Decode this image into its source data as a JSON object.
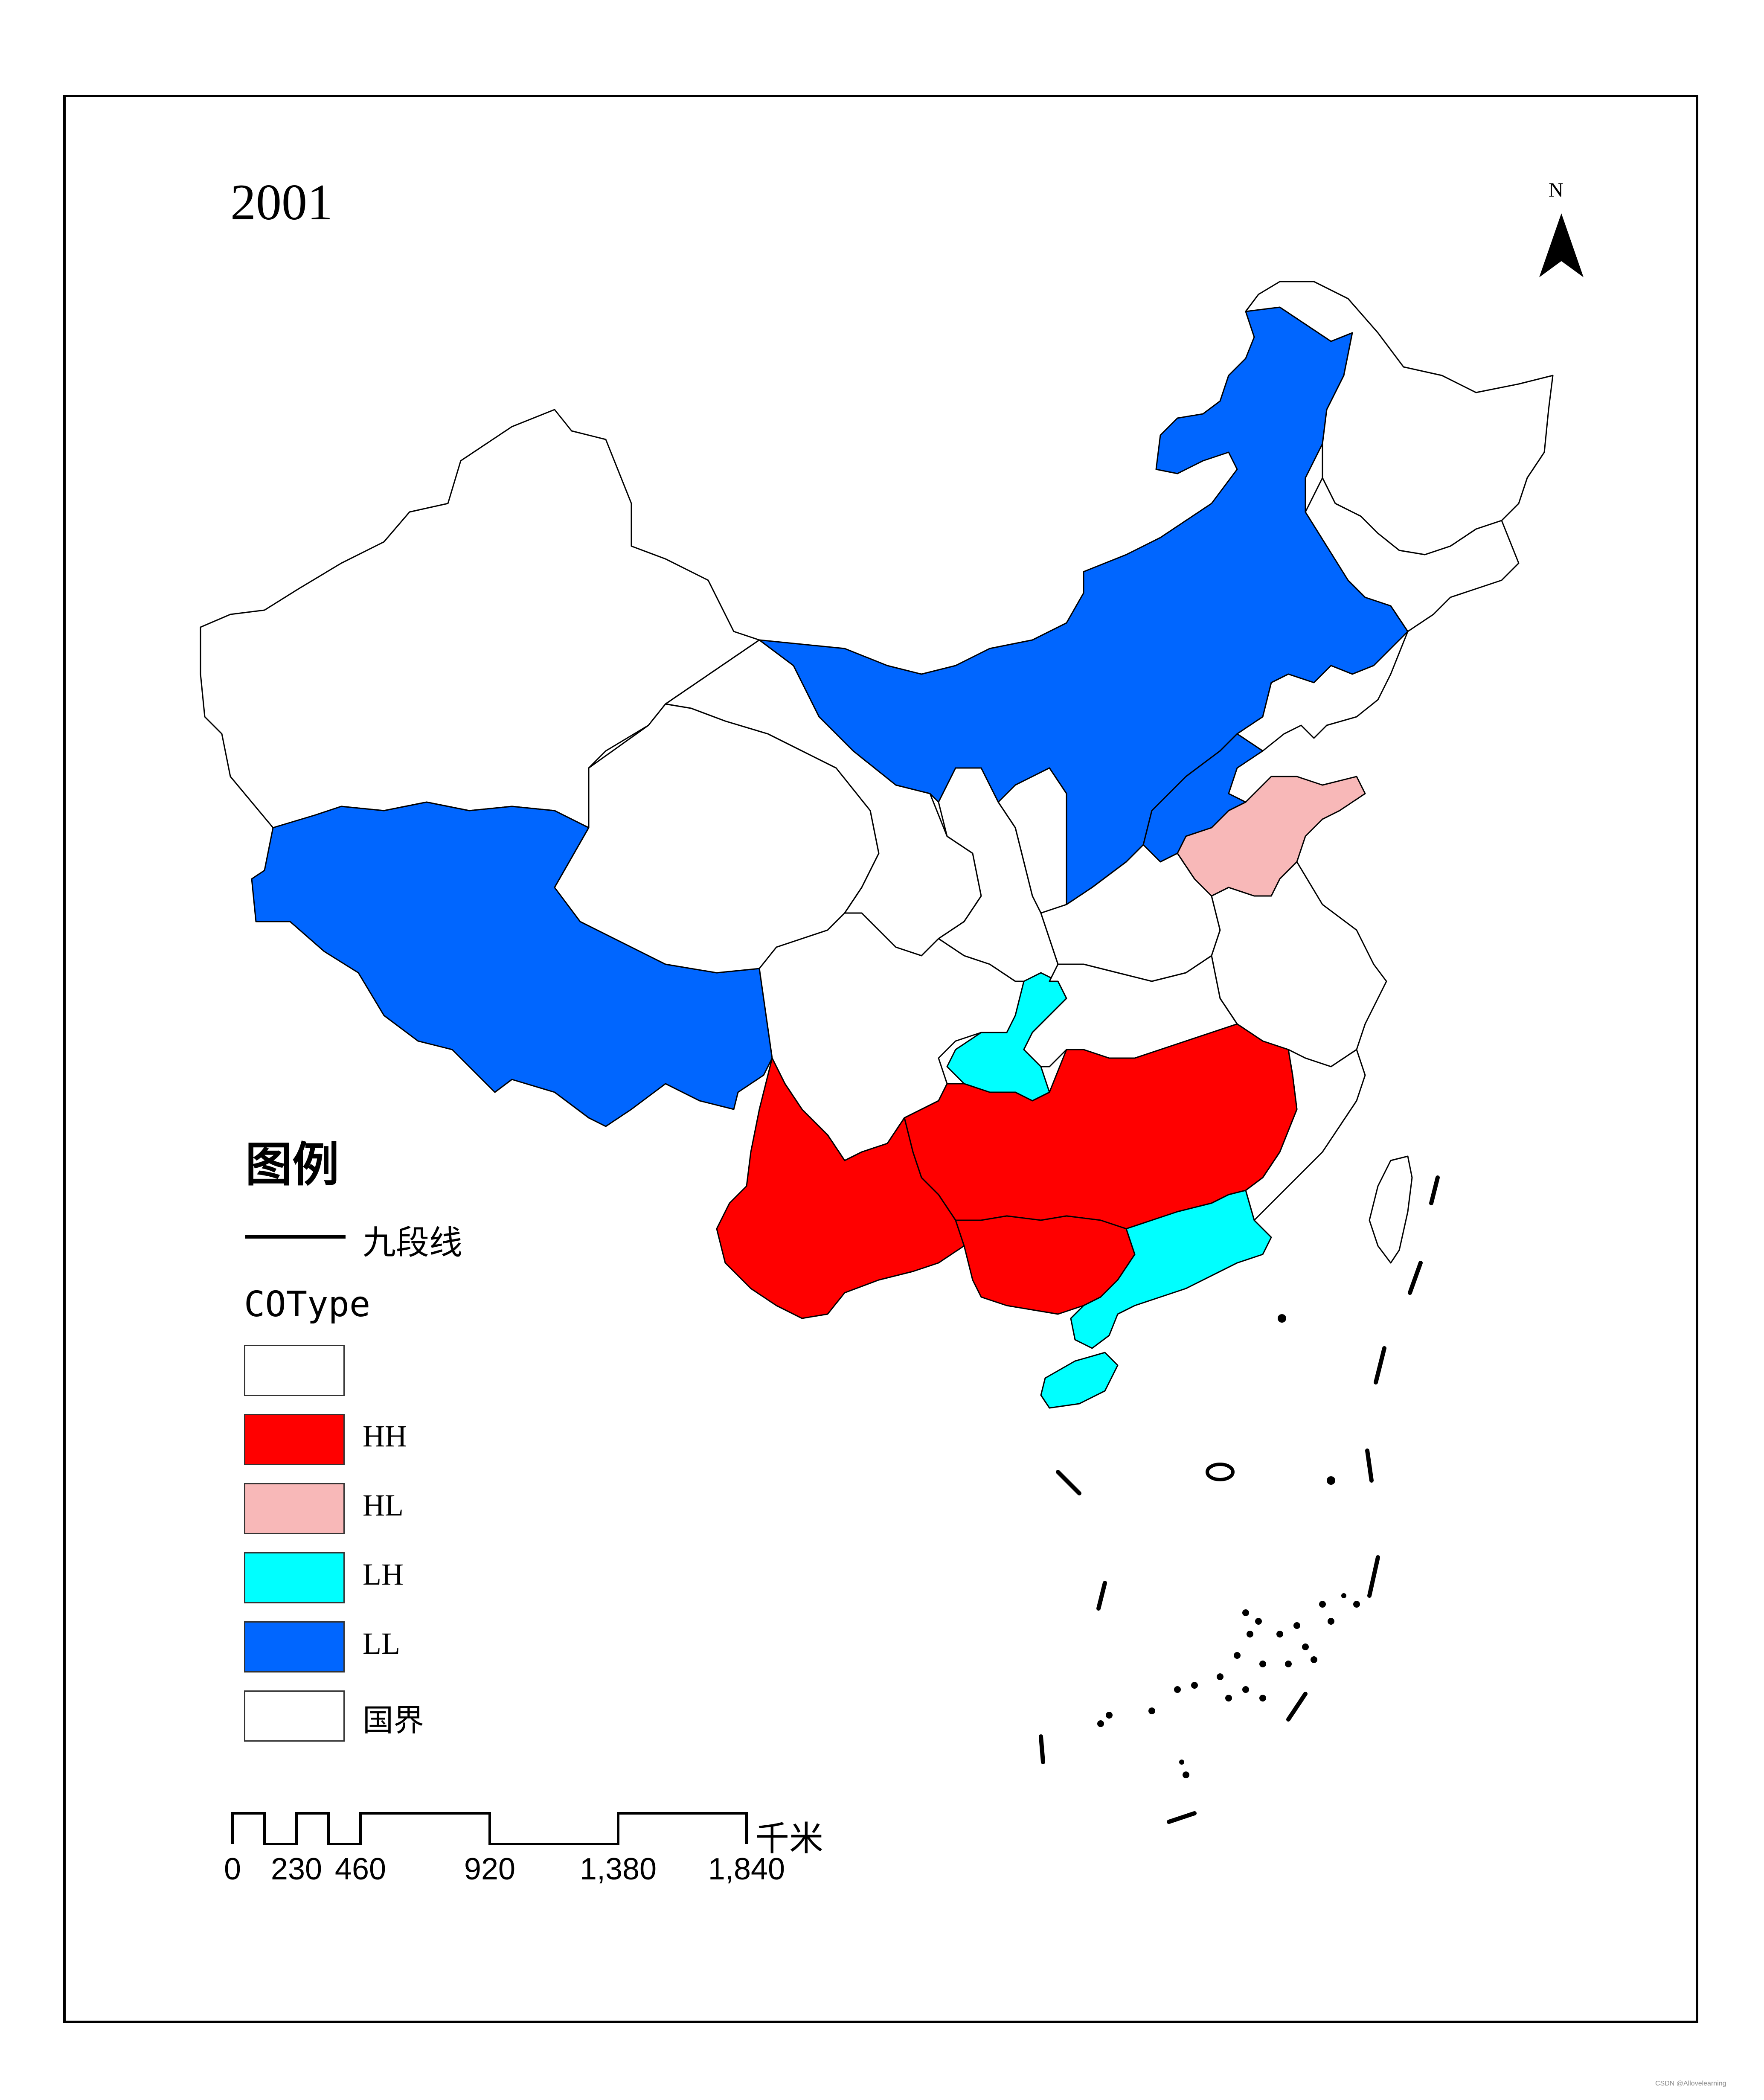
{
  "map": {
    "title": "2001",
    "north_label": "N",
    "legend": {
      "title": "图例",
      "nine_dash_label": "九段线",
      "field_name": "COType",
      "classes": [
        {
          "label": "",
          "color": "#ffffff"
        },
        {
          "label": "HH",
          "color": "#ff0000"
        },
        {
          "label": "HL",
          "color": "#f8b8b8"
        },
        {
          "label": "LH",
          "color": "#00ffff"
        },
        {
          "label": "LL",
          "color": "#0066ff"
        },
        {
          "label": "国界",
          "color": "#ffffff"
        }
      ]
    },
    "scale_bar": {
      "unit": "千米",
      "ticks": [
        "0",
        "230",
        "460",
        "920",
        "1,380",
        "1,840"
      ]
    },
    "watermark": "CSDN @Allovelearning"
  }
}
